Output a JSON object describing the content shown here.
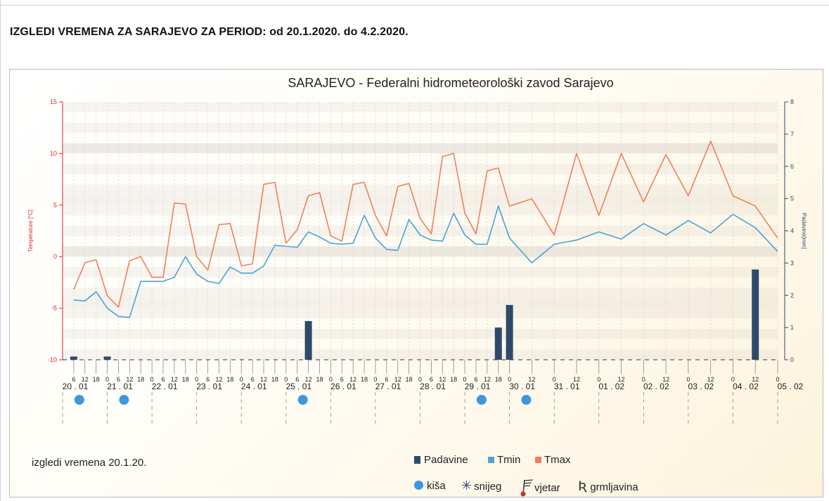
{
  "page": {
    "heading": "IZGLEDI VREMENA ZA SARAJEVO ZA PERIOD: od 20.1.2020. do 4.2.2020.",
    "note": "izgledi vremena 20.1.20."
  },
  "legend": {
    "padavine": "Padavine",
    "tmin": "Tmin",
    "tmax": "Tmax",
    "kisa": "kiša",
    "snijeg": "snijeg",
    "vjetar": "vjetar",
    "grmljavina": "grmljavina"
  },
  "colors": {
    "tmax": "#f08058",
    "tmin": "#4aa3d4",
    "padavine": "#2e4a6b",
    "rain_icon": "#3b97e0",
    "left_axis": "#dd2222",
    "right_axis": "#334466"
  },
  "chart_data": {
    "type": "line",
    "title": "SARAJEVO - Federalni hidrometeorološki zavod Sarajevo",
    "ylabel": "Temperature [°C]",
    "y2label": "Padavine[mm]",
    "ylim": [
      -10,
      15
    ],
    "y2lim": [
      0,
      8
    ],
    "yticks": [
      -10,
      -5,
      0,
      5,
      10,
      15
    ],
    "y2ticks": [
      0,
      1,
      2,
      3,
      4,
      5,
      6,
      7,
      8
    ],
    "x_unit": "hours since 20.01.2020 00:00",
    "days": [
      "20 . 01",
      "21 . 01",
      "22 . 01",
      "23 . 01",
      "24 . 01",
      "25 . 01",
      "26 . 01",
      "27 . 01",
      "28 . 01",
      "29 . 01",
      "30 . 01",
      "31 . 01",
      "01 . 02",
      "02 . 02",
      "03 . 02",
      "04 . 02",
      "05 . 02"
    ],
    "hour_ticks": [
      {
        "x": 6,
        "label": "6"
      },
      {
        "x": 12,
        "label": "12"
      },
      {
        "x": 18,
        "label": "18"
      },
      {
        "x": 24,
        "label": "0"
      },
      {
        "x": 30,
        "label": "6"
      },
      {
        "x": 36,
        "label": "12"
      },
      {
        "x": 42,
        "label": "18"
      },
      {
        "x": 48,
        "label": "0"
      },
      {
        "x": 54,
        "label": "6"
      },
      {
        "x": 60,
        "label": "12"
      },
      {
        "x": 66,
        "label": "18"
      },
      {
        "x": 72,
        "label": "0"
      },
      {
        "x": 78,
        "label": "6"
      },
      {
        "x": 84,
        "label": "12"
      },
      {
        "x": 90,
        "label": "18"
      },
      {
        "x": 96,
        "label": "0"
      },
      {
        "x": 102,
        "label": "6"
      },
      {
        "x": 108,
        "label": "12"
      },
      {
        "x": 114,
        "label": "18"
      },
      {
        "x": 120,
        "label": "0"
      },
      {
        "x": 126,
        "label": "6"
      },
      {
        "x": 132,
        "label": "12"
      },
      {
        "x": 138,
        "label": "18"
      },
      {
        "x": 144,
        "label": "0"
      },
      {
        "x": 150,
        "label": "6"
      },
      {
        "x": 156,
        "label": "12"
      },
      {
        "x": 162,
        "label": "18"
      },
      {
        "x": 168,
        "label": "0"
      },
      {
        "x": 174,
        "label": "6"
      },
      {
        "x": 180,
        "label": "12"
      },
      {
        "x": 186,
        "label": "18"
      },
      {
        "x": 192,
        "label": "0"
      },
      {
        "x": 198,
        "label": "6"
      },
      {
        "x": 204,
        "label": "12"
      },
      {
        "x": 210,
        "label": "18"
      },
      {
        "x": 216,
        "label": "0"
      },
      {
        "x": 222,
        "label": "6"
      },
      {
        "x": 228,
        "label": "12"
      },
      {
        "x": 234,
        "label": "18"
      },
      {
        "x": 240,
        "label": "0"
      },
      {
        "x": 252,
        "label": "12"
      },
      {
        "x": 264,
        "label": "0"
      },
      {
        "x": 276,
        "label": "12"
      },
      {
        "x": 288,
        "label": "0"
      },
      {
        "x": 300,
        "label": "12"
      },
      {
        "x": 312,
        "label": "0"
      },
      {
        "x": 324,
        "label": "12"
      },
      {
        "x": 336,
        "label": "0"
      },
      {
        "x": 348,
        "label": "12"
      },
      {
        "x": 360,
        "label": "0"
      },
      {
        "x": 372,
        "label": "12"
      },
      {
        "x": 384,
        "label": "0"
      }
    ],
    "series": [
      {
        "name": "Tmax",
        "points": [
          [
            6,
            -3.2
          ],
          [
            12,
            -0.6
          ],
          [
            18,
            -0.3
          ],
          [
            24,
            -3.8
          ],
          [
            30,
            -4.9
          ],
          [
            36,
            -0.4
          ],
          [
            42,
            0.0
          ],
          [
            48,
            -2.0
          ],
          [
            54,
            -2.0
          ],
          [
            60,
            5.2
          ],
          [
            66,
            5.1
          ],
          [
            72,
            0.0
          ],
          [
            78,
            -1.3
          ],
          [
            84,
            3.1
          ],
          [
            90,
            3.2
          ],
          [
            96,
            -0.9
          ],
          [
            102,
            -0.7
          ],
          [
            108,
            7.0
          ],
          [
            114,
            7.2
          ],
          [
            120,
            1.3
          ],
          [
            126,
            2.6
          ],
          [
            132,
            5.9
          ],
          [
            138,
            6.2
          ],
          [
            144,
            2.0
          ],
          [
            150,
            1.5
          ],
          [
            156,
            7.0
          ],
          [
            162,
            7.2
          ],
          [
            168,
            4.0
          ],
          [
            174,
            2.0
          ],
          [
            180,
            6.8
          ],
          [
            186,
            7.1
          ],
          [
            192,
            3.7
          ],
          [
            198,
            2.2
          ],
          [
            204,
            9.7
          ],
          [
            210,
            10.0
          ],
          [
            216,
            4.2
          ],
          [
            222,
            2.2
          ],
          [
            228,
            8.3
          ],
          [
            234,
            8.6
          ],
          [
            240,
            4.9
          ],
          [
            252,
            5.6
          ],
          [
            264,
            2.1
          ],
          [
            276,
            10.0
          ],
          [
            288,
            4.0
          ],
          [
            300,
            10.0
          ],
          [
            312,
            5.3
          ],
          [
            324,
            9.9
          ],
          [
            336,
            5.9
          ],
          [
            348,
            11.2
          ],
          [
            360,
            5.9
          ],
          [
            372,
            4.9
          ],
          [
            384,
            1.8
          ]
        ]
      },
      {
        "name": "Tmin",
        "points": [
          [
            6,
            -4.2
          ],
          [
            12,
            -4.3
          ],
          [
            18,
            -3.4
          ],
          [
            24,
            -5.0
          ],
          [
            30,
            -5.8
          ],
          [
            36,
            -5.9
          ],
          [
            42,
            -2.4
          ],
          [
            48,
            -2.4
          ],
          [
            54,
            -2.4
          ],
          [
            60,
            -2.0
          ],
          [
            66,
            0.0
          ],
          [
            72,
            -1.7
          ],
          [
            78,
            -2.4
          ],
          [
            84,
            -2.6
          ],
          [
            90,
            -1.0
          ],
          [
            96,
            -1.6
          ],
          [
            102,
            -1.6
          ],
          [
            108,
            -0.9
          ],
          [
            114,
            1.1
          ],
          [
            120,
            1.0
          ],
          [
            126,
            0.9
          ],
          [
            132,
            2.4
          ],
          [
            138,
            1.9
          ],
          [
            144,
            1.3
          ],
          [
            150,
            1.2
          ],
          [
            156,
            1.3
          ],
          [
            162,
            4.0
          ],
          [
            168,
            1.8
          ],
          [
            174,
            0.7
          ],
          [
            180,
            0.6
          ],
          [
            186,
            3.6
          ],
          [
            192,
            2.1
          ],
          [
            198,
            1.6
          ],
          [
            204,
            1.5
          ],
          [
            210,
            4.2
          ],
          [
            216,
            2.1
          ],
          [
            222,
            1.2
          ],
          [
            228,
            1.2
          ],
          [
            234,
            4.9
          ],
          [
            240,
            1.8
          ],
          [
            252,
            -0.6
          ],
          [
            264,
            1.2
          ],
          [
            276,
            1.6
          ],
          [
            288,
            2.4
          ],
          [
            300,
            1.7
          ],
          [
            312,
            3.2
          ],
          [
            324,
            2.1
          ],
          [
            336,
            3.5
          ],
          [
            348,
            2.3
          ],
          [
            360,
            4.1
          ],
          [
            372,
            2.8
          ],
          [
            384,
            0.5
          ]
        ]
      }
    ],
    "precipitation": {
      "name": "Padavine",
      "unit": "mm",
      "bars": [
        [
          6,
          0.1
        ],
        [
          24,
          0.1
        ],
        [
          132,
          1.2
        ],
        [
          234,
          1.0
        ],
        [
          240,
          1.7
        ],
        [
          372,
          2.8
        ]
      ]
    },
    "weather_icons": [
      {
        "x": 9,
        "type": "kiša"
      },
      {
        "x": 33,
        "type": "kiša"
      },
      {
        "x": 129,
        "type": "kiša"
      },
      {
        "x": 225,
        "type": "kiša"
      },
      {
        "x": 249,
        "type": "kiša"
      }
    ],
    "grid": true
  }
}
